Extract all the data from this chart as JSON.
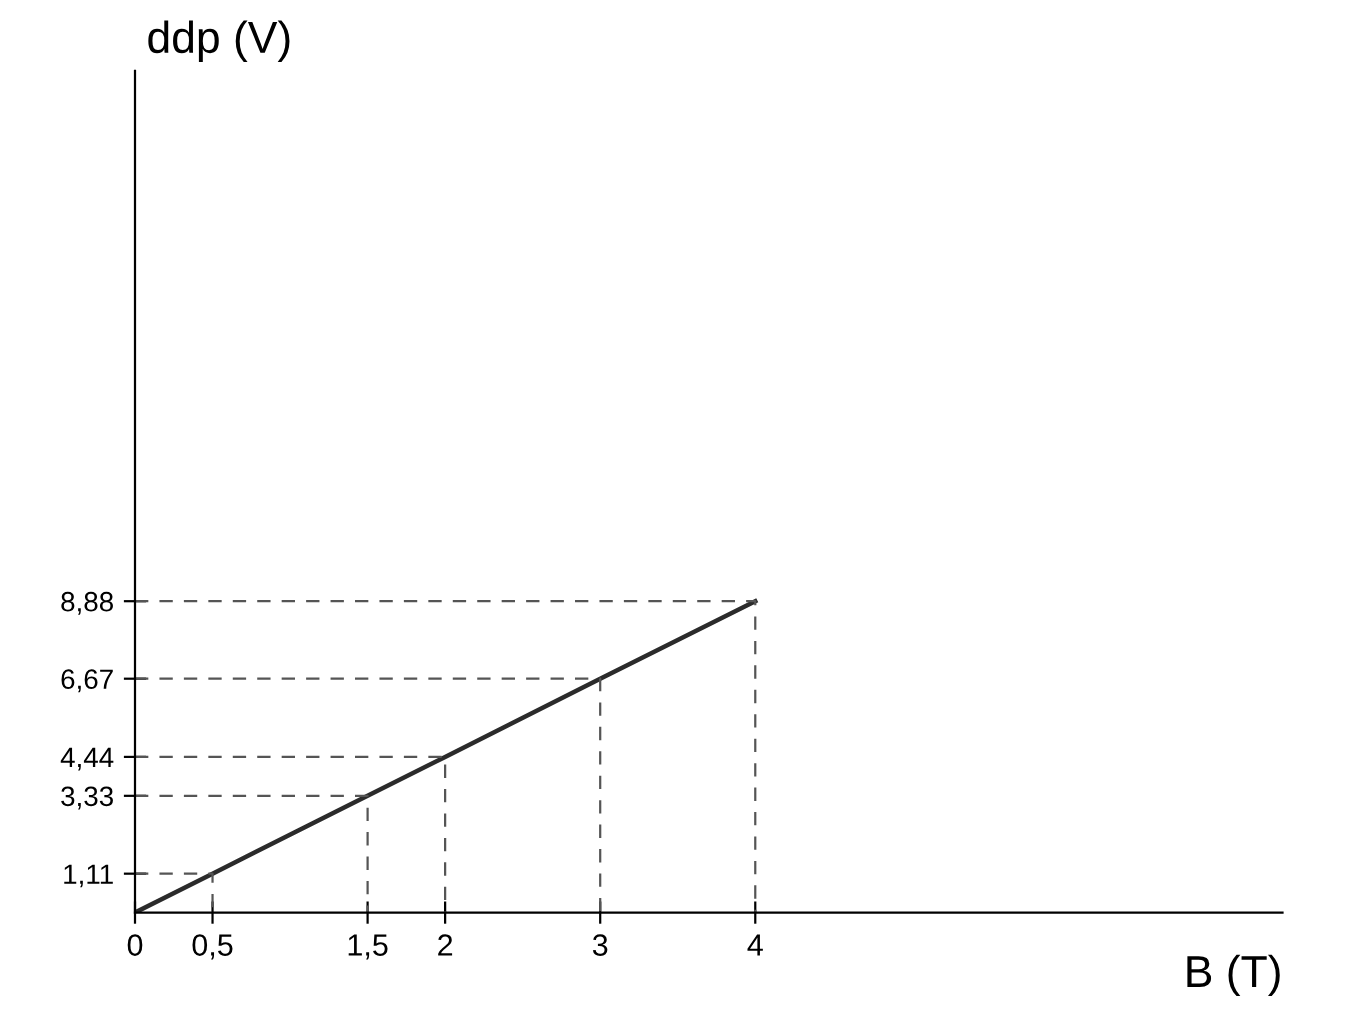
{
  "chart_data": {
    "type": "line",
    "xlabel": "B (T)",
    "ylabel": "ddp (V)",
    "x": [
      0,
      0.5,
      1.5,
      2,
      3,
      4
    ],
    "series": [
      {
        "color": "#2b2b2b",
        "values": [
          0,
          1.11,
          3.33,
          4.44,
          6.67,
          8.88
        ]
      },
      {
        "color": "#555555",
        "line_style": "dashed",
        "x": [
          0,
          0.5,
          0.5
        ],
        "values": [
          1.11,
          1.11,
          0
        ]
      },
      {
        "color": "#555555",
        "line_style": "dashed",
        "x": [
          0,
          1.5,
          1.5
        ],
        "values": [
          3.33,
          3.33,
          0
        ]
      },
      {
        "color": "#555555",
        "line_style": "dashed",
        "x": [
          0,
          2,
          2
        ],
        "values": [
          4.44,
          4.44,
          0
        ]
      },
      {
        "color": "#555555",
        "line_style": "dashed",
        "x": [
          0,
          3,
          3
        ],
        "values": [
          6.67,
          6.67,
          0
        ]
      },
      {
        "color": "#555555",
        "line_style": "dashed",
        "x": [
          0,
          4,
          4
        ],
        "values": [
          8.88,
          8.88,
          0
        ]
      }
    ],
    "xlim": [
      0,
      7.4
    ],
    "ylim": [
      0,
      24
    ],
    "xticks": [
      {
        "value": 0,
        "label": "0"
      },
      {
        "value": 0.5,
        "label": "0,5"
      },
      {
        "value": 1.5,
        "label": "1,5"
      },
      2,
      3,
      4
    ],
    "yticks": [
      {
        "value": 1.11,
        "label": "1,11"
      },
      {
        "value": 3.33,
        "label": "3,33"
      },
      {
        "value": 4.44,
        "label": "4,44"
      },
      {
        "value": 6.67,
        "label": "6,67"
      },
      {
        "value": 8.88,
        "label": "8,88"
      }
    ],
    "grid": false,
    "legend": false,
    "marker": "none",
    "line_style": "solid"
  }
}
